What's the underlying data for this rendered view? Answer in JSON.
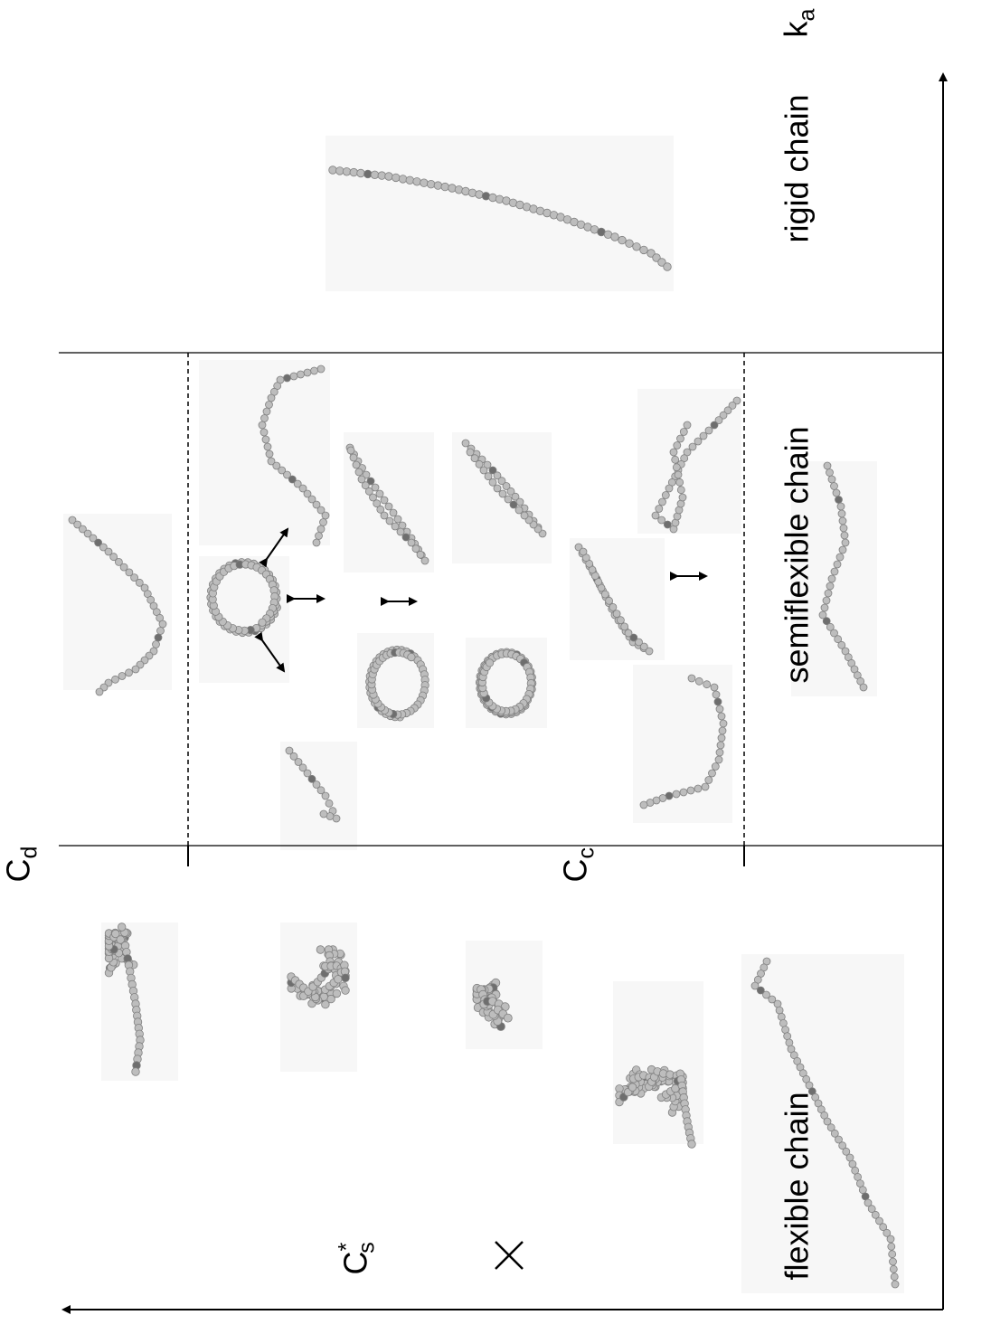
{
  "axes": {
    "x_axis_label_main": "k",
    "x_axis_label_sub": "a",
    "y_axis_label_main": "C",
    "y_axis_label_sub": "s"
  },
  "markers": {
    "cs_star_main": "C",
    "cs_star_sup": "*",
    "cs_star_sub": "s",
    "cd_main": "C",
    "cd_sub": "d",
    "cc_main": "C",
    "cc_sub": "c"
  },
  "regions": {
    "flexible": "flexible chain",
    "semiflexible": "semiflexible chain",
    "rigid": "rigid chain"
  },
  "colors": {
    "bead": "#bdbdbd",
    "bead_dark": "#6e6e6e",
    "bead_stroke": "#808080",
    "panel_bg": "#f7f7f7",
    "line": "#000000"
  }
}
